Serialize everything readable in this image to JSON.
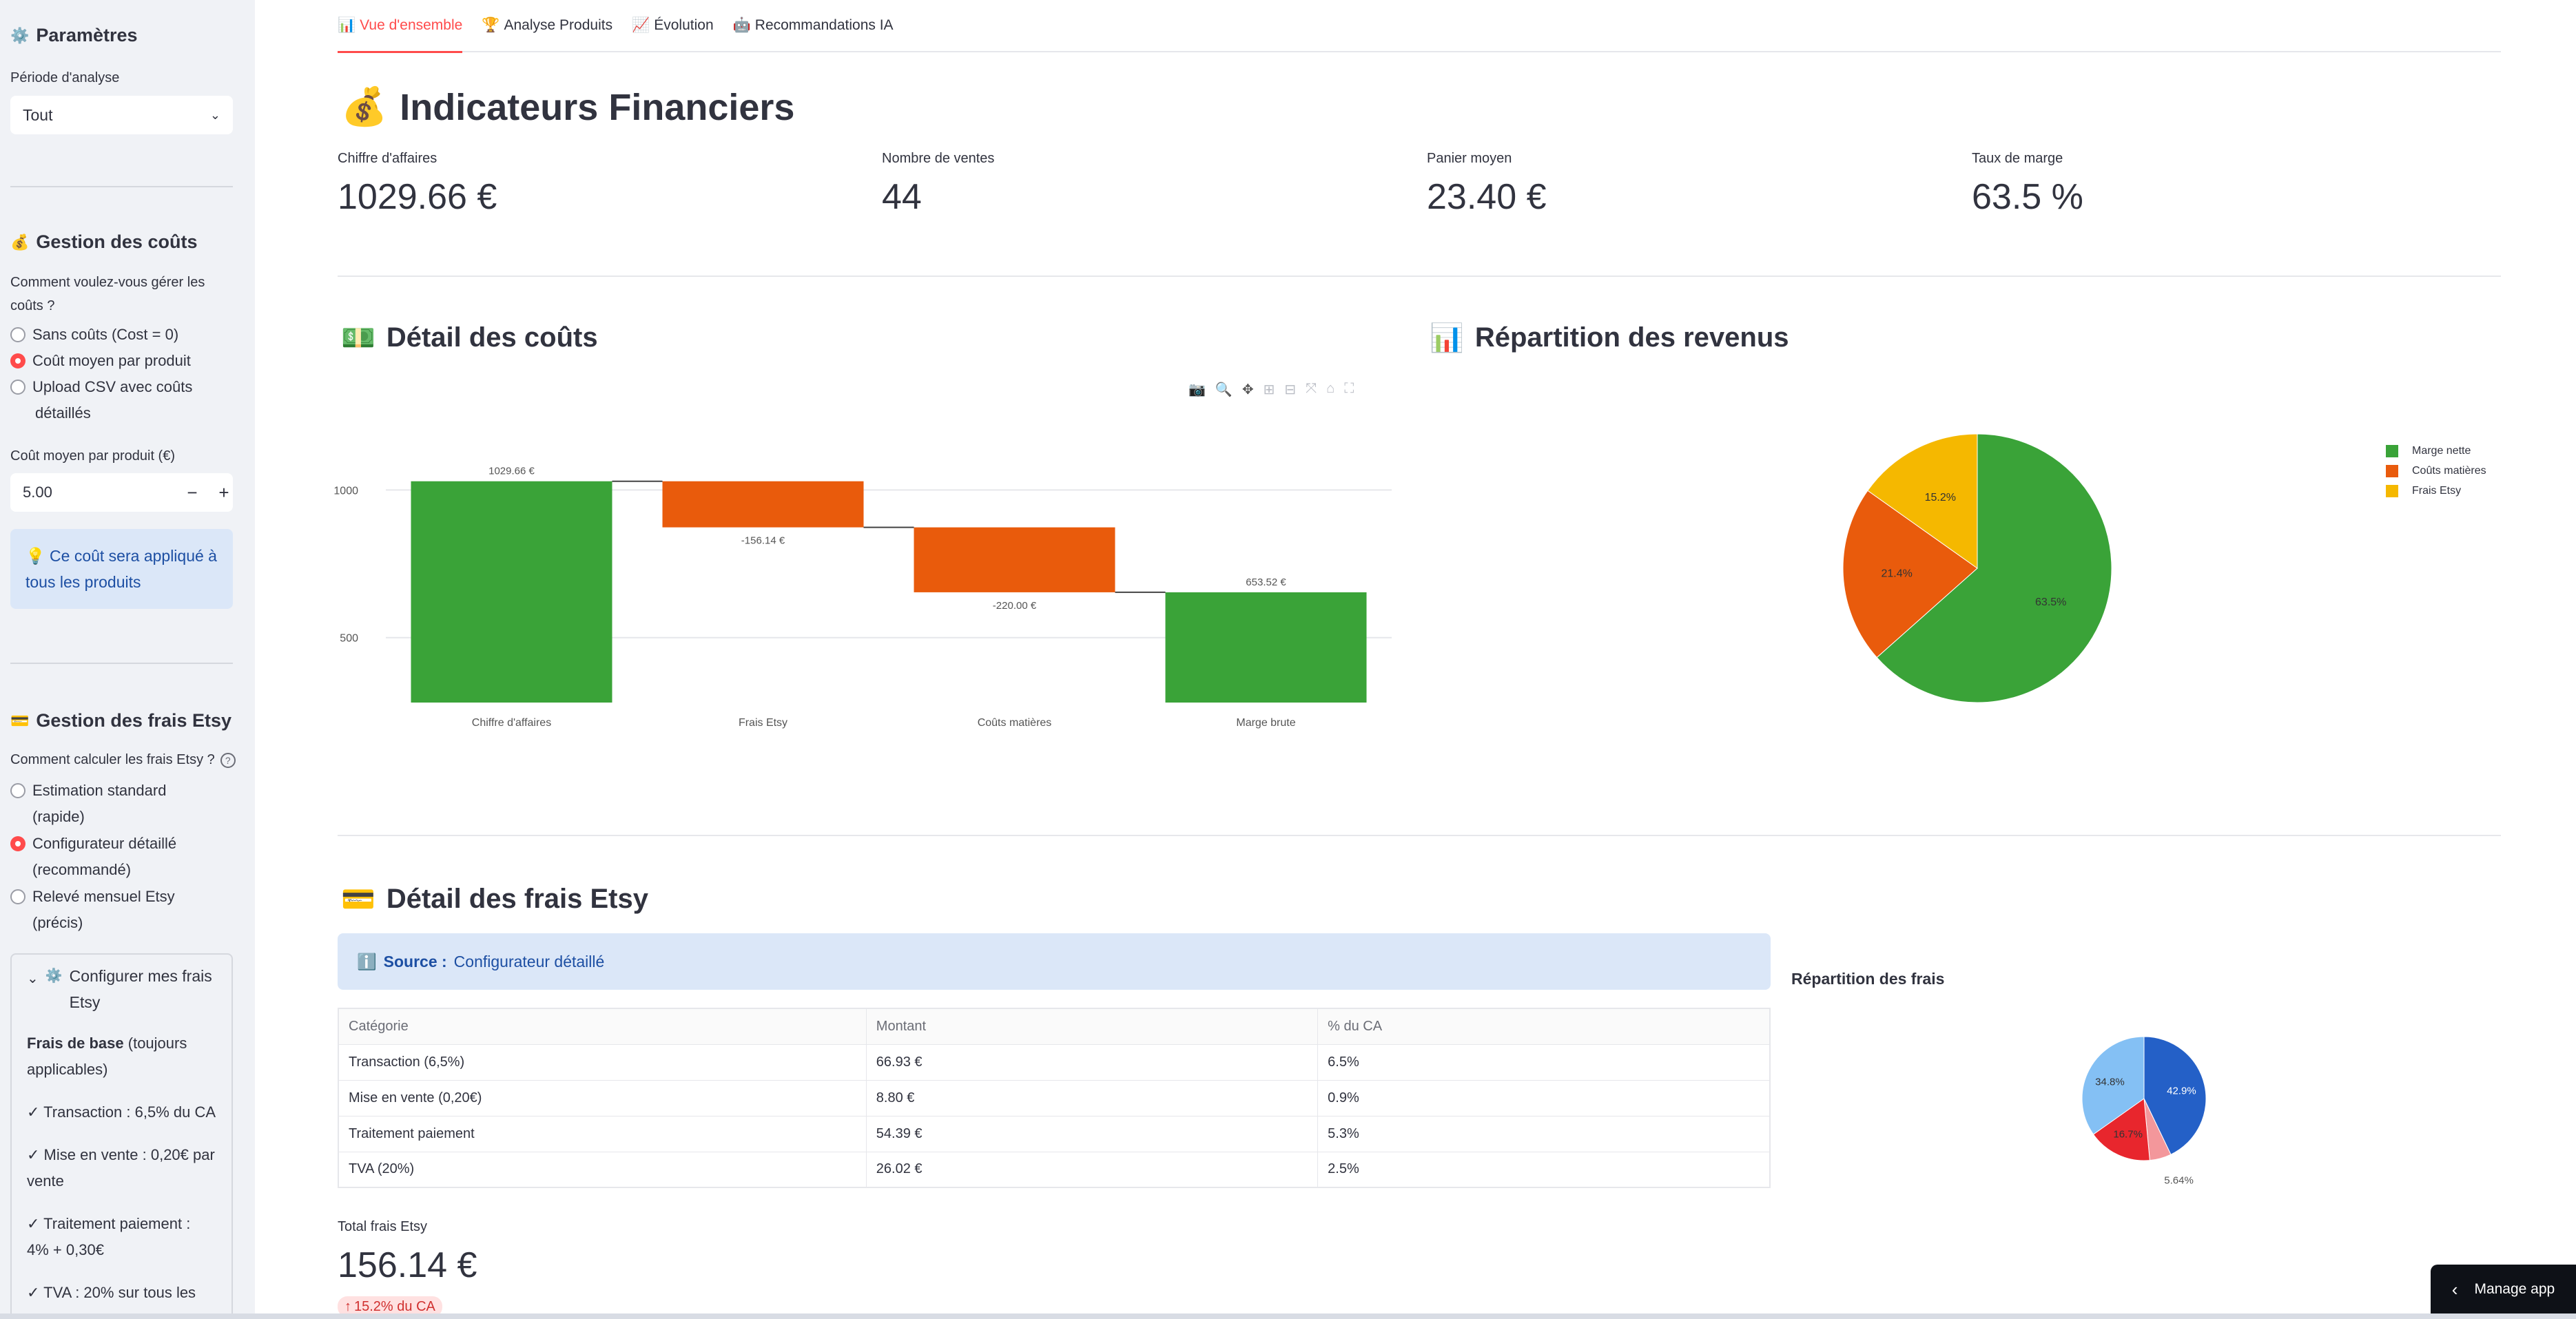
{
  "sidebar": {
    "title": "Paramètres",
    "period_label": "Période d'analyse",
    "period_value": "Tout",
    "cost_section": {
      "title": "Gestion des coûts",
      "question_line1": "Comment voulez-vous gérer les",
      "question_line2": "coûts ?",
      "options": [
        "Sans coûts (Cost = 0)",
        "Coût moyen par produit",
        "Upload CSV avec coûts",
        "détaillés"
      ],
      "selected_index": 1,
      "avg_cost_label": "Coût moyen par produit (€)",
      "avg_cost_value": "5.00",
      "info_line1": "Ce coût sera appliqué à",
      "info_line2": "tous les produits"
    },
    "etsy_section": {
      "title": "Gestion des frais Etsy",
      "question": "Comment calculer les frais Etsy ?",
      "options": [
        {
          "line1": "Estimation standard",
          "line2": "(rapide)"
        },
        {
          "line1": "Configurateur détaillé",
          "line2": "(recommandé)"
        },
        {
          "line1": "Relevé mensuel Etsy",
          "line2": "(précis)"
        }
      ],
      "selected_index": 1,
      "expander_line1": "Configurer mes frais",
      "expander_line2": "Etsy",
      "base_fees_bold": "Frais de base",
      "base_fees_rest": " (toujours",
      "base_fees_line2": "applicables)",
      "fee_items": [
        {
          "line1": "✓ Transaction : 6,5% du CA",
          "line2": ""
        },
        {
          "line1": "✓ Mise en vente : 0,20€ par",
          "line2": "vente"
        },
        {
          "line1": "✓ Traitement paiement :",
          "line2": "4% + 0,30€"
        },
        {
          "line1": "✓ TVA : 20% sur tous les",
          "line2": ""
        }
      ]
    }
  },
  "tabs": [
    {
      "icon": "📊",
      "label": "Vue d'ensemble"
    },
    {
      "icon": "🏆",
      "label": "Analyse Produits"
    },
    {
      "icon": "📈",
      "label": "Évolution"
    },
    {
      "icon": "🤖",
      "label": "Recommandations IA"
    }
  ],
  "header": {
    "icon": "💰",
    "title": "Indicateurs Financiers"
  },
  "metrics": [
    {
      "label": "Chiffre d'affaires",
      "value": "1029.66 €"
    },
    {
      "label": "Nombre de ventes",
      "value": "44"
    },
    {
      "label": "Panier moyen",
      "value": "23.40 €"
    },
    {
      "label": "Taux de marge",
      "value": "63.5 %"
    }
  ],
  "costs_section": {
    "icon": "💵",
    "title": "Détail des coûts"
  },
  "revenue_section": {
    "icon": "📊",
    "title": "Répartition des revenus"
  },
  "etsy_fees_section": {
    "icon": "💳",
    "title": "Détail des frais Etsy",
    "source_label": "Source :",
    "source_value": "Configurateur détaillé",
    "table_headers": [
      "Catégorie",
      "Montant",
      "% du CA"
    ],
    "table_rows": [
      [
        "Transaction (6,5%)",
        "66.93 €",
        "6.5%"
      ],
      [
        "Mise en vente (0,20€)",
        "8.80 €",
        "0.9%"
      ],
      [
        "Traitement paiement",
        "54.39 €",
        "5.3%"
      ],
      [
        "TVA (20%)",
        "26.02 €",
        "2.5%"
      ]
    ],
    "total_label": "Total frais Etsy",
    "total_value": "156.14 €",
    "total_delta": "15.2% du CA",
    "fees_chart_title": "Répartition des frais"
  },
  "manage_app": "Manage app",
  "colors": {
    "accent": "#ff4b4b",
    "green": "#3aa338",
    "orange": "#e95b0c",
    "yellow": "#f5b800",
    "blue": "#2460c7",
    "lightblue": "#84c0f4",
    "red": "#e8262d",
    "pink": "#f3979b"
  },
  "chart_data": [
    {
      "type": "waterfall",
      "categories": [
        "Chiffre d'affaires",
        "Frais Etsy",
        "Coûts matières",
        "Marge brute"
      ],
      "values": [
        1029.66,
        -156.14,
        -220.0,
        653.52
      ],
      "measures": [
        "absolute",
        "relative",
        "relative",
        "total"
      ],
      "data_labels": [
        "1029.66 €",
        "-156.14 €",
        "-220.00 €",
        "653.52 €"
      ],
      "y_ticks": [
        500,
        1000
      ],
      "ylim": [
        280,
        1260
      ],
      "colors": [
        "#3aa338",
        "#e95b0c",
        "#e95b0c",
        "#3aa338"
      ]
    },
    {
      "type": "pie",
      "labels": [
        "Marge nette",
        "Coûts matières",
        "Frais Etsy"
      ],
      "values": [
        63.5,
        21.4,
        15.2
      ],
      "display_labels": [
        "63.5%",
        "21.4%",
        "15.2%"
      ],
      "colors": [
        "#3aa338",
        "#e95b0c",
        "#f5b800"
      ],
      "legend": "right"
    },
    {
      "type": "pie",
      "labels": [
        "Transaction (6,5%)",
        "Mise en vente (0,20€)",
        "Traitement paiement",
        "TVA (20%)"
      ],
      "values": [
        42.9,
        5.64,
        34.8,
        16.7
      ],
      "display_labels": [
        "42.9%",
        "5.64%",
        "34.8%",
        "16.7%"
      ],
      "colors": [
        "#2460c7",
        "#f3979b",
        "#84c0f4",
        "#e8262d"
      ],
      "order": [
        0,
        1,
        3,
        2
      ],
      "title": "Répartition des frais"
    }
  ]
}
